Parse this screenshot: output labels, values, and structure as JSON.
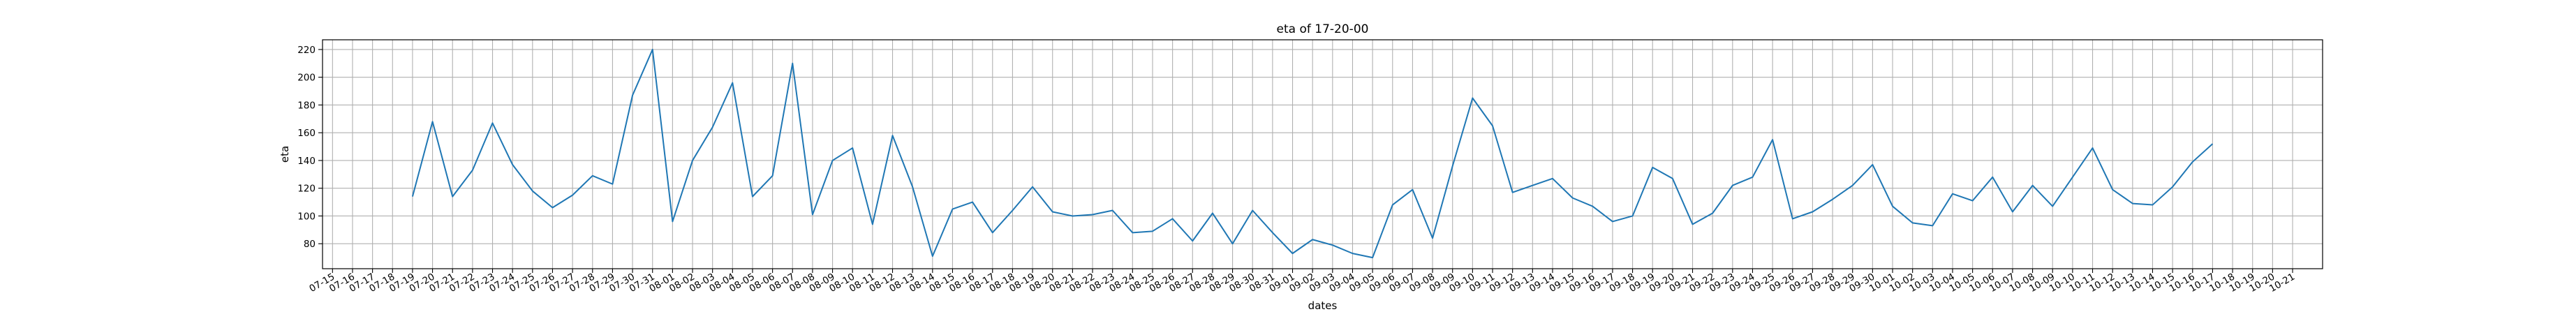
{
  "chart_data": {
    "type": "line",
    "title": "eta of 17-20-00",
    "xlabel": "dates",
    "ylabel": "eta",
    "grid": true,
    "line_color": "#1f77b4",
    "ylim": [
      62,
      227
    ],
    "yticks": [
      80,
      100,
      120,
      140,
      160,
      180,
      200,
      220
    ],
    "xlim": [
      "2023-07-14T12:00",
      "2023-10-22T12:00"
    ],
    "xtick_labels": [
      "07-15",
      "07-16",
      "07-17",
      "07-18",
      "07-19",
      "07-20",
      "07-21",
      "07-22",
      "07-23",
      "07-24",
      "07-25",
      "07-26",
      "07-27",
      "07-28",
      "07-29",
      "07-30",
      "07-31",
      "08-01",
      "08-02",
      "08-03",
      "08-04",
      "08-05",
      "08-06",
      "08-07",
      "08-08",
      "08-09",
      "08-10",
      "08-11",
      "08-12",
      "08-13",
      "08-14",
      "08-15",
      "08-16",
      "08-17",
      "08-18",
      "08-19",
      "08-20",
      "08-21",
      "08-22",
      "08-23",
      "08-24",
      "08-25",
      "08-26",
      "08-27",
      "08-28",
      "08-29",
      "08-30",
      "08-31",
      "09-01",
      "09-02",
      "09-03",
      "09-04",
      "09-05",
      "09-06",
      "09-07",
      "09-08",
      "09-09",
      "09-10",
      "09-11",
      "09-12",
      "09-13",
      "09-14",
      "09-15",
      "09-16",
      "09-17",
      "09-18",
      "09-19",
      "09-20",
      "09-21",
      "09-22",
      "09-23",
      "09-24",
      "09-25",
      "09-26",
      "09-27",
      "09-28",
      "09-29",
      "09-30",
      "10-01",
      "10-02",
      "10-03",
      "10-04",
      "10-05",
      "10-06",
      "10-07",
      "10-08",
      "10-09",
      "10-10",
      "10-11",
      "10-12",
      "10-13",
      "10-14",
      "10-15",
      "10-16",
      "10-17",
      "10-18",
      "10-19",
      "10-20",
      "10-21"
    ],
    "series": [
      {
        "x": [
          "2023-07-19",
          "2023-07-20",
          "2023-07-21",
          "2023-07-22",
          "2023-07-23",
          "2023-07-24",
          "2023-07-25",
          "2023-07-26",
          "2023-07-27",
          "2023-07-28",
          "2023-07-29",
          "2023-07-30",
          "2023-07-31",
          "2023-08-01",
          "2023-08-02",
          "2023-08-03",
          "2023-08-04",
          "2023-08-05",
          "2023-08-06",
          "2023-08-07",
          "2023-08-08",
          "2023-08-09",
          "2023-08-10",
          "2023-08-11",
          "2023-08-12",
          "2023-08-13",
          "2023-08-14",
          "2023-08-15",
          "2023-08-16",
          "2023-08-17",
          "2023-08-18",
          "2023-08-19",
          "2023-08-20",
          "2023-08-21",
          "2023-08-22",
          "2023-08-23",
          "2023-08-24",
          "2023-08-25",
          "2023-08-26",
          "2023-08-27",
          "2023-08-28",
          "2023-08-29",
          "2023-08-30",
          "2023-08-31",
          "2023-09-01",
          "2023-09-02",
          "2023-09-03",
          "2023-09-04",
          "2023-09-05",
          "2023-09-06",
          "2023-09-07",
          "2023-09-08",
          "2023-09-09",
          "2023-09-10",
          "2023-09-11",
          "2023-09-12",
          "2023-09-13",
          "2023-09-14",
          "2023-09-15",
          "2023-09-16",
          "2023-09-17",
          "2023-09-18",
          "2023-09-19",
          "2023-09-20",
          "2023-09-21",
          "2023-09-22",
          "2023-09-23",
          "2023-09-24",
          "2023-09-25",
          "2023-09-26",
          "2023-09-27",
          "2023-09-28",
          "2023-09-29",
          "2023-09-30",
          "2023-10-01",
          "2023-10-02",
          "2023-10-03",
          "2023-10-04",
          "2023-10-05",
          "2023-10-06",
          "2023-10-07",
          "2023-10-08",
          "2023-10-09",
          "2023-10-10",
          "2023-10-11",
          "2023-10-12",
          "2023-10-13",
          "2023-10-14",
          "2023-10-15",
          "2023-10-16",
          "2023-10-17"
        ],
        "values": [
          114,
          168,
          114,
          133,
          167,
          137,
          118,
          106,
          115,
          129,
          123,
          187,
          220,
          96,
          140,
          164,
          196,
          114,
          129,
          210,
          101,
          140,
          149,
          94,
          158,
          121,
          71,
          105,
          110,
          88,
          104,
          121,
          103,
          100,
          101,
          104,
          88,
          89,
          98,
          82,
          102,
          80,
          104,
          88,
          73,
          83,
          79,
          73,
          70,
          108,
          119,
          84,
          136,
          185,
          165,
          117,
          122,
          127,
          113,
          107,
          96,
          100,
          135,
          127,
          94,
          102,
          122,
          128,
          155,
          98,
          103,
          112,
          122,
          137,
          107,
          95,
          93,
          116,
          111,
          128,
          103,
          122,
          107,
          128,
          149,
          119,
          109,
          108,
          121,
          139,
          152
        ]
      }
    ]
  }
}
